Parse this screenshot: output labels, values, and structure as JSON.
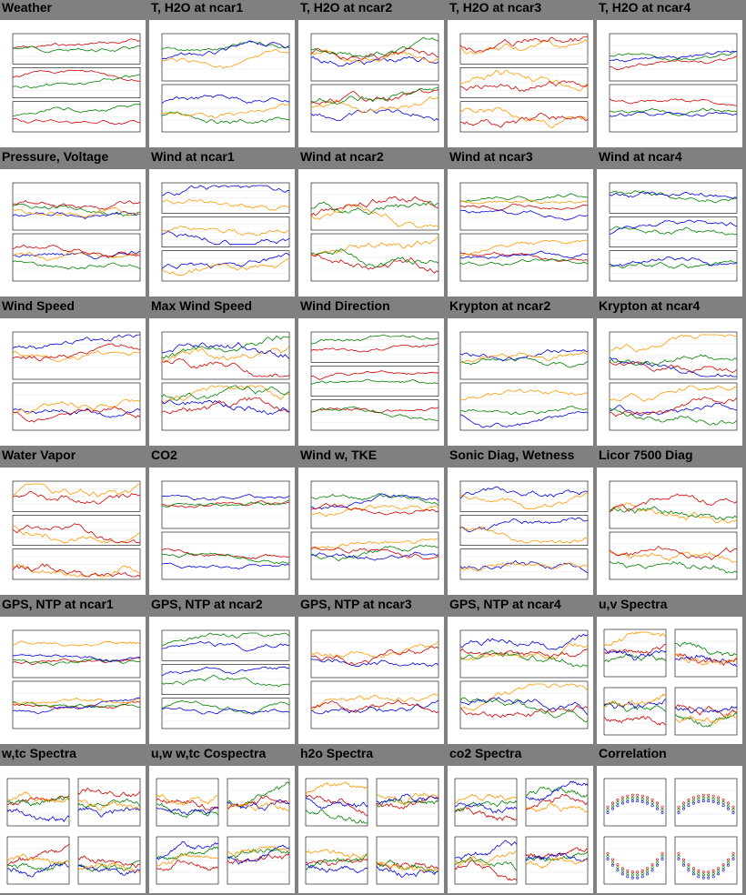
{
  "tiles": [
    {
      "title": "Weather",
      "kind": "timeseries"
    },
    {
      "title": "T, H2O at ncar1",
      "kind": "timeseries"
    },
    {
      "title": "T, H2O at ncar2",
      "kind": "timeseries"
    },
    {
      "title": "T, H2O at ncar3",
      "kind": "timeseries"
    },
    {
      "title": "T, H2O at ncar4",
      "kind": "timeseries"
    },
    {
      "title": "Pressure, Voltage",
      "kind": "timeseries"
    },
    {
      "title": "Wind at ncar1",
      "kind": "timeseries"
    },
    {
      "title": "Wind at ncar2",
      "kind": "timeseries"
    },
    {
      "title": "Wind at ncar3",
      "kind": "timeseries"
    },
    {
      "title": "Wind at ncar4",
      "kind": "timeseries"
    },
    {
      "title": "Wind Speed",
      "kind": "timeseries"
    },
    {
      "title": "Max Wind Speed",
      "kind": "timeseries"
    },
    {
      "title": "Wind Direction",
      "kind": "timeseries"
    },
    {
      "title": "Krypton at ncar2",
      "kind": "timeseries"
    },
    {
      "title": "Krypton at ncar4",
      "kind": "timeseries"
    },
    {
      "title": "Water Vapor",
      "kind": "timeseries"
    },
    {
      "title": "CO2",
      "kind": "timeseries"
    },
    {
      "title": "Wind w, TKE",
      "kind": "timeseries"
    },
    {
      "title": "Sonic Diag, Wetness",
      "kind": "timeseries"
    },
    {
      "title": "Licor 7500 Diag",
      "kind": "timeseries"
    },
    {
      "title": "GPS, NTP at ncar1",
      "kind": "timeseries"
    },
    {
      "title": "GPS, NTP at ncar2",
      "kind": "timeseries"
    },
    {
      "title": "GPS, NTP at ncar3",
      "kind": "timeseries"
    },
    {
      "title": "GPS, NTP at ncar4",
      "kind": "timeseries"
    },
    {
      "title": "u,v Spectra",
      "kind": "spectra"
    },
    {
      "title": "w,tc Spectra",
      "kind": "spectra"
    },
    {
      "title": "u,w w,tc Cospectra",
      "kind": "spectra"
    },
    {
      "title": "h2o Spectra",
      "kind": "spectra"
    },
    {
      "title": "co2 Spectra",
      "kind": "spectra"
    },
    {
      "title": "Correlation",
      "kind": "correlation"
    }
  ],
  "colors": {
    "background": "#808080",
    "series": [
      "#d00000",
      "#008000",
      "#0000e0",
      "#ff9900",
      "#000000"
    ]
  }
}
